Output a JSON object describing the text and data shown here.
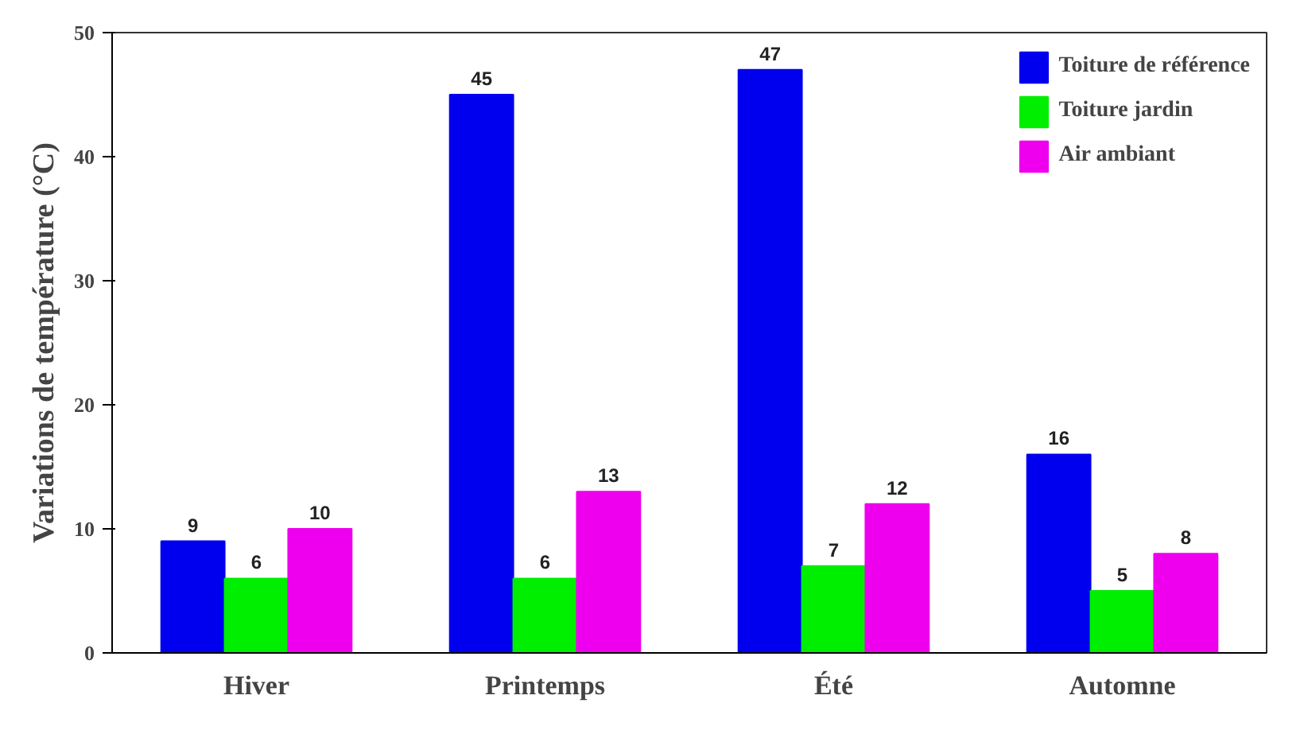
{
  "chart_data": {
    "type": "bar",
    "ylabel": "Variations de température (°C)",
    "categories": [
      "Hiver",
      "Printemps",
      "Été",
      "Automne"
    ],
    "series": [
      {
        "name": "Toiture de référence",
        "color": "#0000ee",
        "values": [
          9,
          45,
          47,
          16
        ]
      },
      {
        "name": "Toiture jardin",
        "color": "#00ee00",
        "values": [
          6,
          6,
          7,
          5
        ]
      },
      {
        "name": "Air ambiant",
        "color": "#ee00ee",
        "values": [
          10,
          13,
          12,
          8
        ]
      }
    ],
    "ylim": [
      0,
      50
    ],
    "yticks": [
      0,
      10,
      20,
      30,
      40,
      50
    ],
    "grid": false,
    "legend": "top right",
    "data_labels": true
  }
}
